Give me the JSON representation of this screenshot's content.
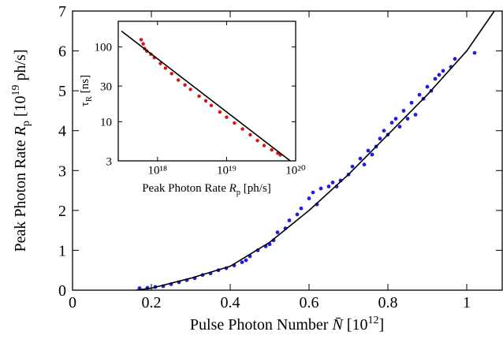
{
  "chart_data": [
    {
      "type": "scatter",
      "x_label": [
        "Pulse Photon Number ",
        "N̄",
        " [10",
        "12",
        "]"
      ],
      "y_label": [
        "Peak Photon Rate ",
        "R",
        "p",
        " [10",
        "19",
        " ph/s]"
      ],
      "xlim": [
        0,
        1.09
      ],
      "ylim": [
        0,
        7
      ],
      "xticks": [
        0,
        0.2,
        0.4,
        0.6,
        0.8,
        1
      ],
      "yticks": [
        0,
        1,
        2,
        3,
        4,
        5,
        6,
        7
      ],
      "series": [
        {
          "type": "scatter",
          "color": "#1f1fe0",
          "x": [
            0.17,
            0.19,
            0.21,
            0.23,
            0.25,
            0.27,
            0.29,
            0.31,
            0.33,
            0.35,
            0.37,
            0.39,
            0.41,
            0.43,
            0.45,
            0.47,
            0.49,
            0.51,
            0.52,
            0.54,
            0.55,
            0.57,
            0.58,
            0.6,
            0.61,
            0.62,
            0.63,
            0.65,
            0.66,
            0.68,
            0.7,
            0.71,
            0.73,
            0.74,
            0.75,
            0.77,
            0.78,
            0.79,
            0.8,
            0.82,
            0.83,
            0.84,
            0.85,
            0.86,
            0.87,
            0.88,
            0.89,
            0.9,
            0.91,
            0.92,
            0.93,
            0.94,
            0.96,
            0.97,
            1.02,
            0.44,
            0.5,
            0.67,
            0.76,
            0.81
          ],
          "values": [
            0.05,
            0.06,
            0.08,
            0.1,
            0.15,
            0.2,
            0.25,
            0.3,
            0.38,
            0.42,
            0.5,
            0.55,
            0.62,
            0.7,
            0.85,
            1.0,
            1.1,
            1.25,
            1.45,
            1.55,
            1.75,
            1.9,
            2.05,
            2.3,
            2.45,
            2.15,
            2.55,
            2.6,
            2.7,
            2.75,
            2.9,
            3.1,
            3.3,
            3.15,
            3.5,
            3.6,
            3.8,
            4.0,
            3.9,
            4.3,
            4.1,
            4.5,
            4.3,
            4.7,
            4.4,
            4.9,
            4.8,
            5.1,
            5.0,
            5.3,
            5.4,
            5.5,
            5.6,
            5.8,
            5.95,
            0.75,
            1.15,
            2.6,
            3.4,
            4.2
          ]
        },
        {
          "type": "line",
          "color": "#000000",
          "x": [
            0.16,
            0.2,
            0.3,
            0.4,
            0.5,
            0.6,
            0.7,
            0.8,
            0.9,
            1.0,
            1.07
          ],
          "values": [
            0,
            0.05,
            0.3,
            0.6,
            1.2,
            2.0,
            2.9,
            3.9,
            4.9,
            6.0,
            7.0
          ]
        }
      ]
    },
    {
      "type": "scatter",
      "log_x": true,
      "log_y": true,
      "x_label": [
        "Peak Photon Rate ",
        "R",
        "p",
        " [ph/s]"
      ],
      "y_label": [
        "τ",
        "R",
        " [ns]"
      ],
      "xlim": [
        2.7e+17,
        1e+20
      ],
      "ylim": [
        3,
        220
      ],
      "xticks": [
        {
          "value": 1e+18,
          "label": "10¹⁸"
        },
        {
          "value": 1e+19,
          "label": "10¹⁹"
        },
        {
          "value": 1e+20,
          "label": "10²⁰"
        }
      ],
      "yticks": [
        3,
        10,
        30,
        100
      ],
      "series": [
        {
          "type": "scatter",
          "color": "#e01010",
          "x": [
            5.8e+17,
            6.2e+17,
            6.5e+17,
            7e+17,
            8e+17,
            9e+17,
            1.1e+18,
            1.3e+18,
            1.6e+18,
            2e+18,
            2.5e+18,
            3e+18,
            4e+18,
            5e+18,
            6e+18,
            8e+18,
            1e+19,
            1.3e+19,
            1.7e+19,
            2.2e+19,
            2.8e+19,
            3.5e+19,
            4.5e+19,
            5.5e+19,
            6e+19
          ],
          "values": [
            125,
            110,
            95,
            88,
            80,
            72,
            60,
            52,
            44,
            36,
            31,
            27,
            22,
            19,
            16.5,
            13.5,
            11.5,
            9.6,
            8,
            6.7,
            5.6,
            4.8,
            4.2,
            3.8,
            3.6
          ]
        },
        {
          "type": "line",
          "color": "#000000",
          "x": [
            3e+17,
            1e+20
          ],
          "values": [
            163,
            2.64
          ]
        }
      ]
    }
  ]
}
